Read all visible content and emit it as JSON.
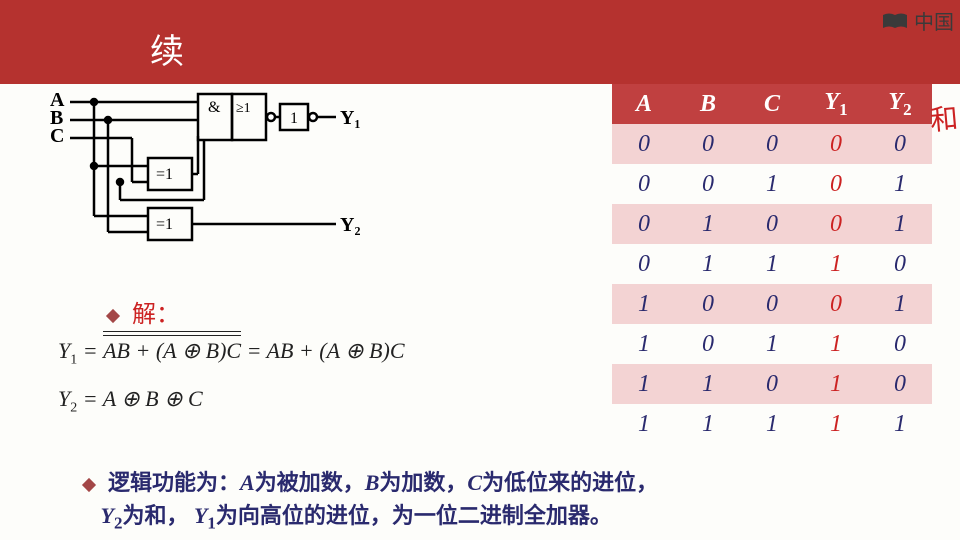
{
  "header": {
    "title": "续",
    "logo_text": "中国"
  },
  "circuit": {
    "inputs": [
      "A",
      "B",
      "C"
    ],
    "outputs": [
      "Y₁",
      "Y₂"
    ],
    "gate_labels": {
      "and": "&",
      "or_ge1": "≥1",
      "inv": "1",
      "xor": "=1"
    }
  },
  "table": {
    "headers": [
      "A",
      "B",
      "C",
      "Y1",
      "Y2"
    ],
    "rows": [
      [
        "0",
        "0",
        "0",
        "0",
        "0"
      ],
      [
        "0",
        "0",
        "1",
        "0",
        "1"
      ],
      [
        "0",
        "1",
        "0",
        "0",
        "1"
      ],
      [
        "0",
        "1",
        "1",
        "1",
        "0"
      ],
      [
        "1",
        "0",
        "0",
        "0",
        "1"
      ],
      [
        "1",
        "0",
        "1",
        "1",
        "0"
      ],
      [
        "1",
        "1",
        "0",
        "1",
        "0"
      ],
      [
        "1",
        "1",
        "1",
        "1",
        "1"
      ]
    ],
    "y1_color": "#c22",
    "header_bg": "#c04040",
    "stripe_bg": "#f3d3d3"
  },
  "solution_label": "解：",
  "eq1": {
    "lhs": "Y₁",
    "bar_expr": "AB + (A ⊕ B)C",
    "rhs": "AB + (A ⊕ B)C"
  },
  "eq2": "Y₂ = A ⊕ B ⊕ C",
  "description": {
    "line1_pre": "逻辑功能为：",
    "A_is": "为被加数，",
    "B_is": "为加数，",
    "C_is": "为低位来的进位，",
    "Y2_is": "为和，",
    "Y1_is": "为向高位的进位，为一位二进制全加器。"
  },
  "annotation": "和",
  "colors": {
    "header_bg": "#b5322f",
    "text_blue": "#2a2a6e",
    "red": "#c22"
  }
}
